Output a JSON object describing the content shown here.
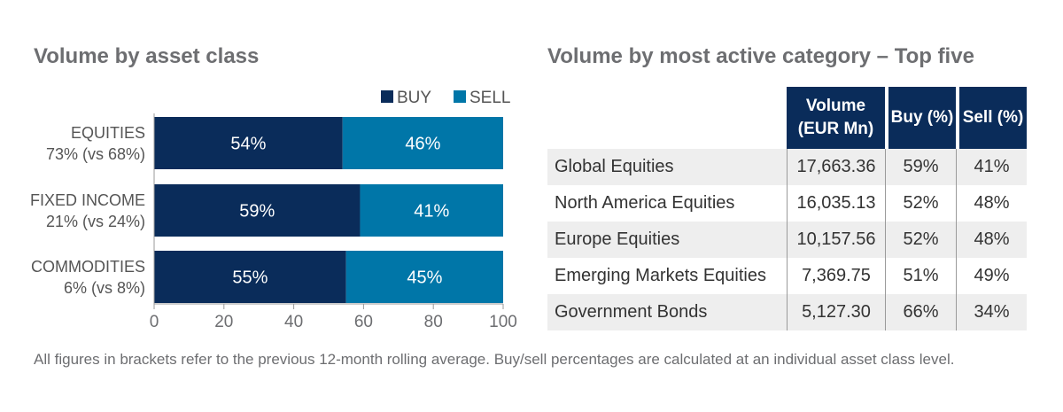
{
  "left": {
    "title": "Volume by asset class"
  },
  "right": {
    "title": "Volume by most active category – Top five"
  },
  "chart_data": [
    {
      "type": "bar",
      "orientation": "horizontal",
      "stacked": true,
      "title": "Volume by asset class",
      "categories": [
        {
          "label": "EQUITIES",
          "sublabel": "73% (vs 68%)"
        },
        {
          "label": "FIXED INCOME",
          "sublabel": "21% (vs 24%)"
        },
        {
          "label": "COMMODITIES",
          "sublabel": "6% (vs 8%)"
        }
      ],
      "series": [
        {
          "name": "BUY",
          "color": "#0a2c5a",
          "values": [
            54,
            59,
            55
          ],
          "labels": [
            "54%",
            "59%",
            "55%"
          ]
        },
        {
          "name": "SELL",
          "color": "#0076a8",
          "values": [
            46,
            41,
            45
          ],
          "labels": [
            "46%",
            "41%",
            "45%"
          ]
        }
      ],
      "xlim": [
        0,
        100
      ],
      "xticks": [
        "0",
        "20",
        "40",
        "60",
        "80",
        "100"
      ],
      "legend_position": "top-right",
      "grid": false
    },
    {
      "type": "table",
      "title": "Volume by most active category – Top five",
      "columns": [
        "Volume (EUR Mn)",
        "Buy (%)",
        "Sell (%)"
      ],
      "rows": [
        {
          "name": "Global Equities",
          "volume": "17,663.36",
          "buy": "59%",
          "sell": "41%"
        },
        {
          "name": "North America Equities",
          "volume": "16,035.13",
          "buy": "52%",
          "sell": "48%"
        },
        {
          "name": "Europe Equities",
          "volume": "10,157.56",
          "buy": "52%",
          "sell": "48%"
        },
        {
          "name": "Emerging Markets Equities",
          "volume": "7,369.75",
          "buy": "51%",
          "sell": "49%"
        },
        {
          "name": "Government Bonds",
          "volume": "5,127.30",
          "buy": "66%",
          "sell": "34%"
        }
      ]
    }
  ],
  "footnote": "All figures in brackets refer to the previous 12-month rolling average. Buy/sell percentages are calculated at an individual asset class level."
}
